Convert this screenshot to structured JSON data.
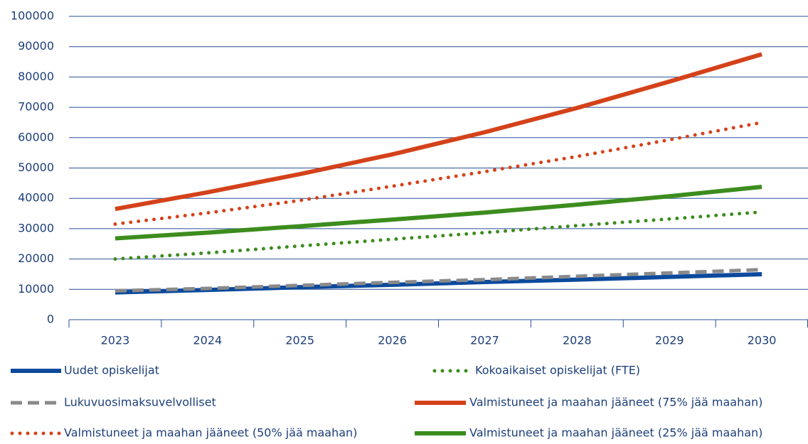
{
  "chart_data": {
    "type": "line",
    "categories": [
      "2023",
      "2024",
      "2025",
      "2026",
      "2027",
      "2028",
      "2029",
      "2030"
    ],
    "ylim": [
      0,
      100000
    ],
    "yticks": [
      0,
      10000,
      20000,
      30000,
      40000,
      50000,
      60000,
      70000,
      80000,
      90000,
      100000
    ],
    "grid": true,
    "legend": "bottom",
    "series": [
      {
        "name": "Uudet opiskelijat",
        "color": "#0b4a9c",
        "style": "solid",
        "values": [
          9000,
          9800,
          10700,
          11500,
          12400,
          13200,
          14100,
          15000
        ]
      },
      {
        "name": "Kokoaikaiset opiskelijat (FTE)",
        "color": "#3c8c1e",
        "style": "dotted",
        "values": [
          20000,
          22000,
          24300,
          26500,
          28700,
          31000,
          33200,
          35500
        ]
      },
      {
        "name": "Lukuvuosimaksuvelvolliset",
        "color": "#8a8a8a",
        "style": "dashed",
        "values": [
          9500,
          10300,
          11300,
          12300,
          13200,
          14300,
          15400,
          16500
        ]
      },
      {
        "name": "Valmistuneet ja maahan jääneet (75% jää maahan)",
        "color": "#d4421a",
        "style": "solid",
        "values": [
          36500,
          42000,
          48000,
          54500,
          61800,
          69800,
          78500,
          87500
        ]
      },
      {
        "name": "Valmistuneet ja maahan jääneet (50% jää maahan)",
        "color": "#d4421a",
        "style": "dotted",
        "values": [
          31500,
          35200,
          39300,
          44000,
          48800,
          53800,
          59300,
          65000
        ]
      },
      {
        "name": "Valmistuneet ja maahan jääneet (25% jää maahan)",
        "color": "#3c8c1e",
        "style": "solid",
        "values": [
          26800,
          28700,
          30800,
          33000,
          35300,
          37900,
          40700,
          43800
        ]
      }
    ]
  }
}
